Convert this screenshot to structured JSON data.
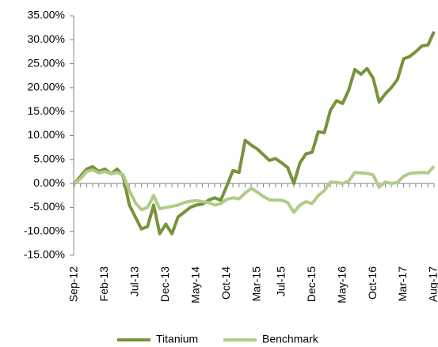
{
  "chart_data": {
    "type": "line",
    "categories": [
      "Sep-12",
      null,
      null,
      null,
      null,
      "Feb-13",
      null,
      null,
      null,
      null,
      "Jul-13",
      null,
      null,
      null,
      null,
      "Dec-13",
      null,
      null,
      null,
      null,
      "May-14",
      null,
      null,
      null,
      null,
      "Oct-14",
      null,
      null,
      null,
      null,
      "Mar-15",
      null,
      null,
      null,
      "Jul-15",
      null,
      null,
      null,
      null,
      "Dec-15",
      null,
      null,
      null,
      null,
      "May-16",
      null,
      null,
      null,
      null,
      "Oct-16",
      null,
      null,
      null,
      null,
      "Mar-17",
      null,
      null,
      null,
      null,
      "Aug-17"
    ],
    "series": [
      {
        "name": "Titanium",
        "color": "#77933c",
        "values": [
          0,
          1.5,
          3,
          3.5,
          2.5,
          3,
          2,
          3,
          1.5,
          -4.5,
          -7,
          -9.5,
          -9,
          -4.5,
          -10.5,
          -8.5,
          -10.5,
          -7,
          -6,
          -5,
          -4.5,
          -4.3,
          -3.5,
          -3,
          -3.5,
          -0.5,
          2.7,
          2.3,
          9,
          8,
          7.2,
          6,
          4.8,
          5.2,
          4.3,
          3.3,
          0,
          4.3,
          6.2,
          6.5,
          10.8,
          10.6,
          15.3,
          17.3,
          16.7,
          19.5,
          23.8,
          22.8,
          24,
          22,
          17,
          18.7,
          20,
          21.7,
          26,
          26.5,
          27.5,
          28.7,
          28.9,
          31.7
        ]
      },
      {
        "name": "Benchmark",
        "color": "#b0cc88",
        "values": [
          0,
          1,
          2.5,
          2.8,
          2.2,
          2.5,
          2,
          2.3,
          1.8,
          -1.5,
          -4,
          -5.5,
          -5,
          -2.5,
          -5.3,
          -5,
          -4.8,
          -4.5,
          -4,
          -3.7,
          -3.6,
          -3.8,
          -4,
          -4.5,
          -4.2,
          -3.3,
          -3,
          -3.2,
          -2,
          -1,
          -1.8,
          -2.7,
          -3.4,
          -3.5,
          -3.5,
          -4,
          -6,
          -4.5,
          -3.8,
          -4.2,
          -2.5,
          -1.5,
          0.3,
          0.2,
          0,
          0.5,
          2.3,
          2.2,
          2.1,
          1.8,
          -0.8,
          0.3,
          0,
          0.2,
          1.5,
          2.1,
          2.2,
          2.3,
          2.2,
          3.6
        ]
      }
    ],
    "ylim": [
      -15,
      35
    ],
    "yticks": [
      {
        "value": -15,
        "label": "-15.00%"
      },
      {
        "value": -10,
        "label": "-10.00%"
      },
      {
        "value": -5,
        "label": "-5.00%"
      },
      {
        "value": 0,
        "label": "0.00%"
      },
      {
        "value": 5,
        "label": "5.00%"
      },
      {
        "value": 10,
        "label": "10.00%"
      },
      {
        "value": 15,
        "label": "15.00%"
      },
      {
        "value": 20,
        "label": "20.00%"
      },
      {
        "value": 25,
        "label": "25.00%"
      },
      {
        "value": 30,
        "label": "30.00%"
      },
      {
        "value": 35,
        "label": "35.00%"
      }
    ],
    "legend": "bottom"
  }
}
